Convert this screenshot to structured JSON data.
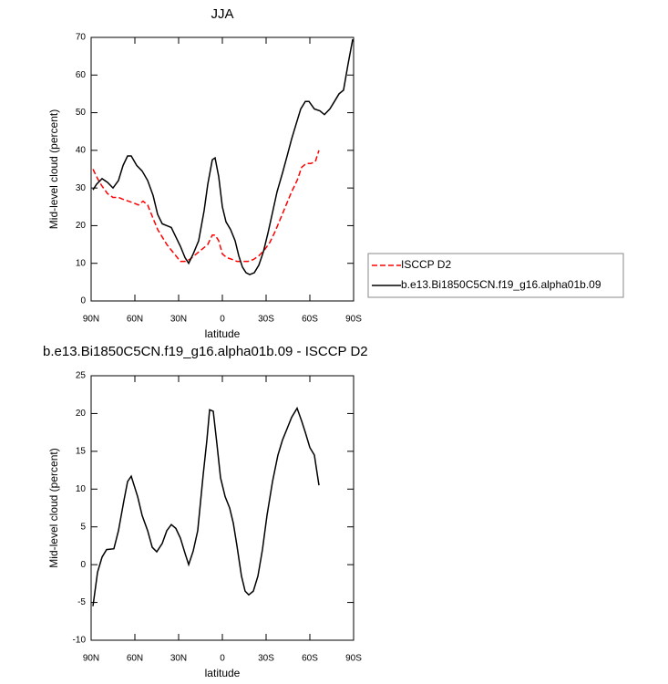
{
  "chart_data": [
    {
      "type": "line",
      "title": "JJA",
      "x_label": "latitude",
      "y_label": "Mid-level cloud (percent)",
      "xlim": [
        90,
        -90
      ],
      "ylim": [
        0,
        70
      ],
      "xticks": [
        {
          "value": 90,
          "label": "90N"
        },
        {
          "value": 60,
          "label": "60N"
        },
        {
          "value": 30,
          "label": "30N"
        },
        0,
        {
          "value": -30,
          "label": "30S"
        },
        {
          "value": -60,
          "label": "60S"
        },
        {
          "value": -90,
          "label": "90S"
        }
      ],
      "yticks": [
        0,
        10,
        20,
        30,
        40,
        50,
        60,
        70
      ],
      "legend": "right",
      "series": [
        {
          "name": "ISCCP D2",
          "color": "#ff0000",
          "dashed": true,
          "x": [
            88.75,
            85.6,
            82.5,
            78.75,
            75,
            71.25,
            68.1,
            64.4,
            60.6,
            57.5,
            54.4,
            51.25,
            48.1,
            44.4,
            41.25,
            38.1,
            35,
            31.9,
            28.75,
            25.6,
            22.5,
            19.4,
            16.25,
            13.1,
            10,
            6.9,
            5,
            2.5,
            0,
            -3.1,
            -6.9,
            -10,
            -13.75,
            -17.5,
            -21.25,
            -25,
            -28.75,
            -32.5,
            -36.25,
            -40,
            -43.75,
            -47.5,
            -51.25,
            -54.4,
            -57.5,
            -60.6,
            -63.75,
            -66.25
          ],
          "values": [
            35,
            32.5,
            30.5,
            28.5,
            27.5,
            27.5,
            27,
            26.5,
            26,
            25.5,
            26.5,
            25.5,
            22.5,
            19,
            17,
            15,
            13.5,
            12,
            10.5,
            10.5,
            11,
            12,
            13,
            14,
            15,
            17.5,
            17.5,
            16,
            12.5,
            11.5,
            11,
            10.5,
            10.5,
            10.5,
            11,
            12,
            13.5,
            15.5,
            18.5,
            22,
            25.5,
            29,
            32,
            35.5,
            36.5,
            36.5,
            37,
            40
          ]
        },
        {
          "name": "b.e13.Bi1850C5CN.f19_g16.alpha01b.09",
          "color": "#000000",
          "dashed": false,
          "x": [
            88.75,
            86.25,
            82.5,
            78.75,
            75,
            71.25,
            68.1,
            65,
            62.5,
            58.75,
            55,
            51.25,
            47.5,
            44.4,
            41.25,
            38.1,
            35,
            31.9,
            28.75,
            25.6,
            23.1,
            20,
            16.25,
            12.5,
            10,
            6.9,
            5,
            2.5,
            0,
            -2.5,
            -5.6,
            -8.75,
            -11.25,
            -13.75,
            -16.25,
            -18.75,
            -21.9,
            -25,
            -28.1,
            -31.25,
            -34.4,
            -37.5,
            -41.25,
            -44.4,
            -47.5,
            -50.6,
            -53.75,
            -56.9,
            -59.4,
            -63.1,
            -66.9,
            -70,
            -73.75,
            -76.9,
            -80,
            -83.1,
            -86.25,
            -89.4
          ],
          "values": [
            29.5,
            31,
            32.5,
            31.5,
            30,
            32,
            36,
            38.5,
            38.5,
            36,
            34.5,
            32,
            28,
            23,
            20.5,
            20,
            19.5,
            17,
            14.5,
            11.5,
            10,
            12.5,
            16,
            24,
            31,
            37.5,
            38,
            33,
            25,
            21,
            19,
            16,
            12,
            9,
            7.5,
            7,
            7.5,
            9.5,
            13,
            18,
            23.5,
            29,
            34,
            38.5,
            43,
            47,
            51,
            53,
            53,
            51,
            50.5,
            49.5,
            51,
            53,
            55,
            56,
            63,
            69.5
          ]
        }
      ]
    },
    {
      "type": "line",
      "title": "b.e13.Bi1850C5CN.f19_g16.alpha01b.09 - ISCCP D2",
      "x_label": "latitude",
      "y_label": "Mid-level cloud (percent)",
      "xlim": [
        90,
        -90
      ],
      "ylim": [
        -10,
        25
      ],
      "xticks": [
        {
          "value": 90,
          "label": "90N"
        },
        {
          "value": 60,
          "label": "60N"
        },
        {
          "value": 30,
          "label": "30N"
        },
        0,
        {
          "value": -30,
          "label": "30S"
        },
        {
          "value": -60,
          "label": "60S"
        },
        {
          "value": -90,
          "label": "90S"
        }
      ],
      "yticks": [
        -10,
        -5,
        0,
        5,
        10,
        15,
        20,
        25
      ],
      "series": [
        {
          "color": "#000000",
          "dashed": false,
          "x": [
            88.75,
            85.6,
            82.5,
            79.4,
            74.4,
            71.25,
            67.5,
            65,
            62.5,
            58.1,
            55,
            51.25,
            48.1,
            45,
            41.25,
            38.1,
            35,
            31.9,
            28.75,
            25.6,
            23.1,
            20,
            16.9,
            13.1,
            10.6,
            8.75,
            6.25,
            3.75,
            1.25,
            -1.9,
            -5,
            -7.5,
            -10,
            -13.1,
            -15.6,
            -18.1,
            -21.25,
            -24.4,
            -27.5,
            -30.6,
            -34.4,
            -38.1,
            -41.25,
            -44.4,
            -47.5,
            -51.25,
            -54.4,
            -56.9,
            -60,
            -63.1,
            -66.25
          ],
          "values": [
            -5.5,
            -1,
            1,
            2,
            2.1,
            4.5,
            8.5,
            11,
            11.7,
            9,
            6.5,
            4.5,
            2.3,
            1.7,
            2.8,
            4.5,
            5.3,
            4.8,
            3.5,
            1.5,
            0,
            1.8,
            4.5,
            12,
            16.5,
            20.5,
            20.3,
            16,
            11.5,
            9,
            7.5,
            5.5,
            2.5,
            -1.5,
            -3.5,
            -4,
            -3.5,
            -1.5,
            2,
            6.5,
            11,
            14.5,
            16.5,
            18,
            19.5,
            20.7,
            19,
            17.5,
            15.5,
            14.5,
            10.5
          ]
        }
      ]
    }
  ]
}
